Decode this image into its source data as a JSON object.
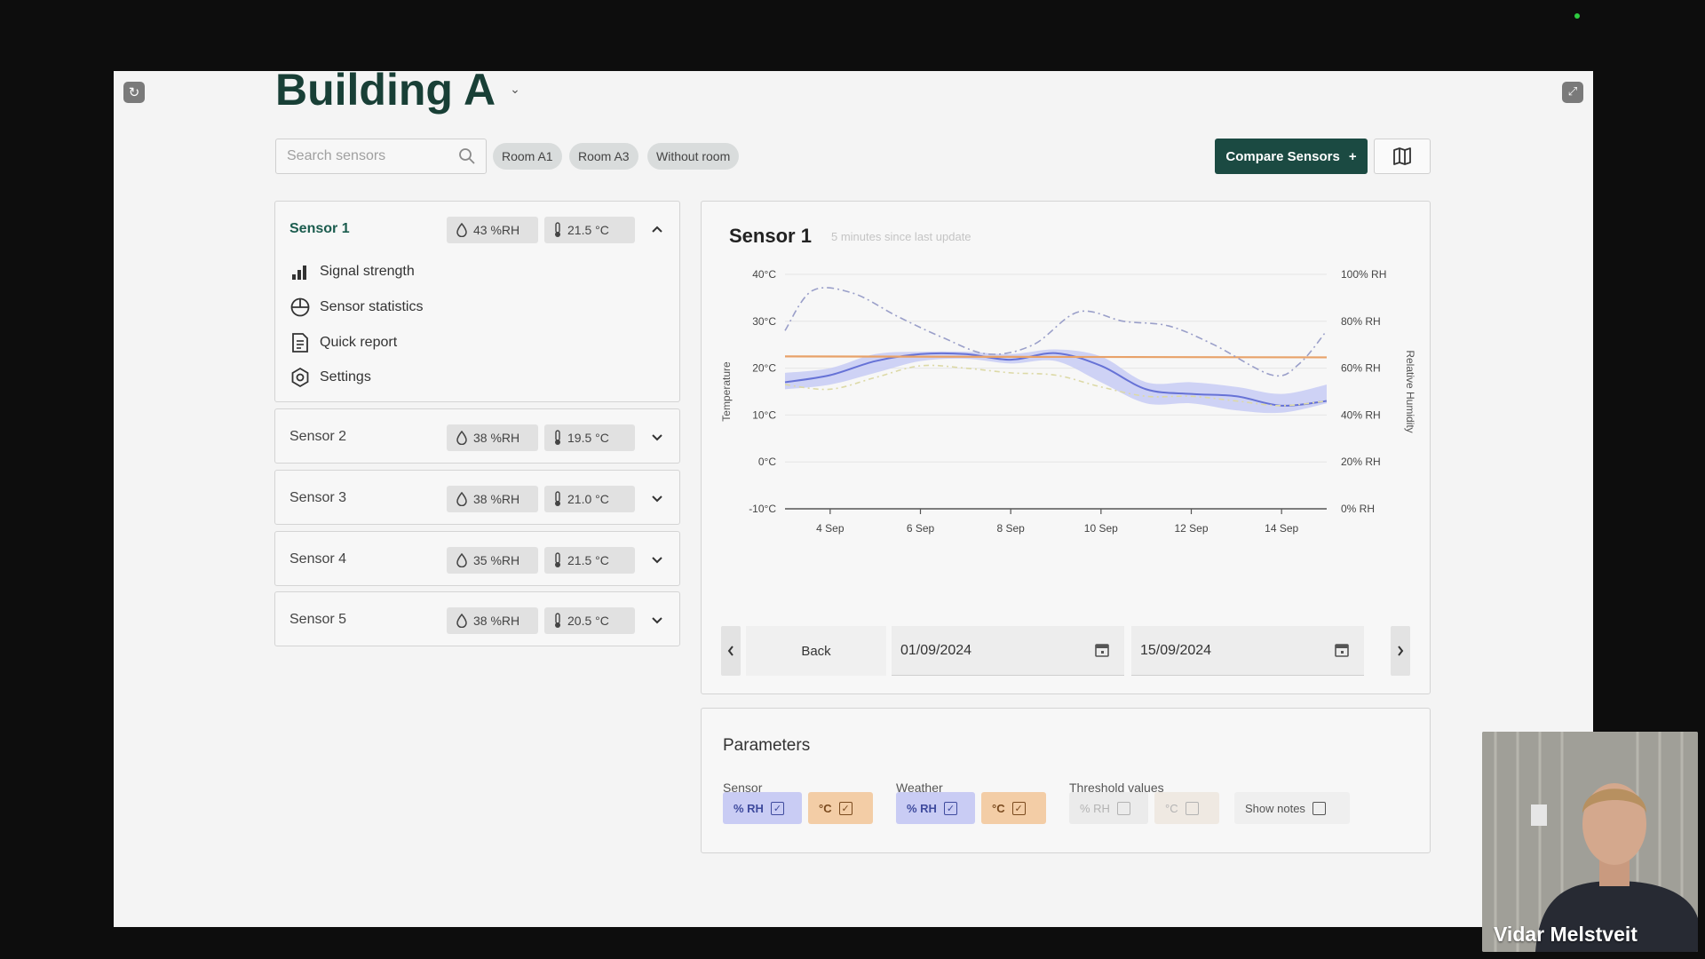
{
  "building": {
    "title": "Building A"
  },
  "search": {
    "placeholder": "Search sensors"
  },
  "filters": [
    "Room A1",
    "Room A3",
    "Without room"
  ],
  "toolbar": {
    "compare_label": "Compare Sensors",
    "compare_icon": "+"
  },
  "sensors": [
    {
      "name": "Sensor 1",
      "rh": "43 %RH",
      "temp": "21.5 °C",
      "expanded": true
    },
    {
      "name": "Sensor 2",
      "rh": "38 %RH",
      "temp": "19.5 °C",
      "expanded": false
    },
    {
      "name": "Sensor 3",
      "rh": "38 %RH",
      "temp": "21.0 °C",
      "expanded": false
    },
    {
      "name": "Sensor 4",
      "rh": "35 %RH",
      "temp": "21.5 °C",
      "expanded": false
    },
    {
      "name": "Sensor 5",
      "rh": "38 %RH",
      "temp": "20.5 °C",
      "expanded": false
    }
  ],
  "sensor_menu": [
    "Signal strength",
    "Sensor statistics",
    "Quick report",
    "Settings"
  ],
  "detail": {
    "title": "Sensor 1",
    "subtitle": "5 minutes since last update",
    "back_label": "Back",
    "date_from": "01/09/2024",
    "date_to": "15/09/2024"
  },
  "chart_data": {
    "type": "line",
    "ylabel": "Temperature",
    "y2label": "Relative Humidity",
    "ylim": [
      -10,
      40
    ],
    "y2lim": [
      0,
      100
    ],
    "yticks": [
      "40°C",
      "30°C",
      "20°C",
      "10°C",
      "0°C",
      "-10°C"
    ],
    "y2ticks": [
      "100% RH",
      "80% RH",
      "60% RH",
      "40% RH",
      "20% RH",
      "0% RH"
    ],
    "xticks": [
      "4 Sep",
      "6 Sep",
      "8 Sep",
      "10 Sep",
      "12 Sep",
      "14 Sep"
    ],
    "x_range": [
      3,
      15
    ],
    "grid": true,
    "series": [
      {
        "kind": "temp-band",
        "color": "#c7cbf5",
        "x": [
          3,
          4,
          5,
          6,
          7,
          8,
          9,
          10,
          11,
          12,
          13,
          14,
          15
        ],
        "lower": [
          15.5,
          16.5,
          19,
          21.5,
          22,
          21,
          21.5,
          17,
          12.5,
          12.5,
          11,
          10.5,
          12.5
        ],
        "upper": [
          19,
          20,
          23,
          23.5,
          23.5,
          23,
          24,
          22.5,
          17,
          17,
          16,
          14.5,
          16.5
        ]
      },
      {
        "kind": "temp-line",
        "color": "#6672d6",
        "x": [
          3,
          4,
          5,
          6,
          7,
          8,
          9,
          10,
          11,
          12,
          13,
          14,
          15
        ],
        "y": [
          17,
          18.5,
          21.5,
          23,
          23,
          21.8,
          23.2,
          20.5,
          15.5,
          14.5,
          14,
          12,
          13
        ]
      },
      {
        "kind": "threshold",
        "color": "#e8a269",
        "x": [
          3,
          15
        ],
        "y": [
          22.5,
          22.3
        ]
      },
      {
        "kind": "rh-dashed",
        "color": "#9a9fc9",
        "x": [
          3,
          3.6,
          4.5,
          5.5,
          6.5,
          7.5,
          8.5,
          9.5,
          10.5,
          11.5,
          12.5,
          13.8,
          14.4,
          15
        ],
        "y": [
          76,
          93,
          92,
          82,
          73,
          66,
          70,
          84,
          80,
          78,
          70,
          57,
          62,
          76
        ]
      },
      {
        "kind": "weather-dashed",
        "color": "#dcd9a6",
        "x": [
          3,
          4,
          5,
          6,
          7,
          8,
          9,
          10,
          11,
          12,
          13,
          14,
          15
        ],
        "y": [
          53,
          51,
          56,
          61,
          60,
          58,
          57,
          52,
          48,
          48,
          46,
          44,
          46
        ]
      }
    ]
  },
  "params": {
    "title": "Parameters",
    "groups": [
      {
        "label": "Sensor",
        "toggles": [
          {
            "label": "% RH",
            "checked": true
          },
          {
            "label": "°C",
            "checked": true
          }
        ]
      },
      {
        "label": "Weather",
        "toggles": [
          {
            "label": "% RH",
            "checked": true
          },
          {
            "label": "°C",
            "checked": true
          }
        ]
      },
      {
        "label": "Threshold values",
        "toggles": [
          {
            "label": "% RH",
            "checked": false
          },
          {
            "label": "°C",
            "checked": false
          }
        ]
      }
    ],
    "show_notes_label": "Show notes"
  },
  "video": {
    "name": "Vidar Melstveit"
  },
  "colors": {
    "brand": "#1b4a42",
    "title": "#183f36",
    "temp_line": "#6672d6",
    "threshold": "#e8a269"
  }
}
